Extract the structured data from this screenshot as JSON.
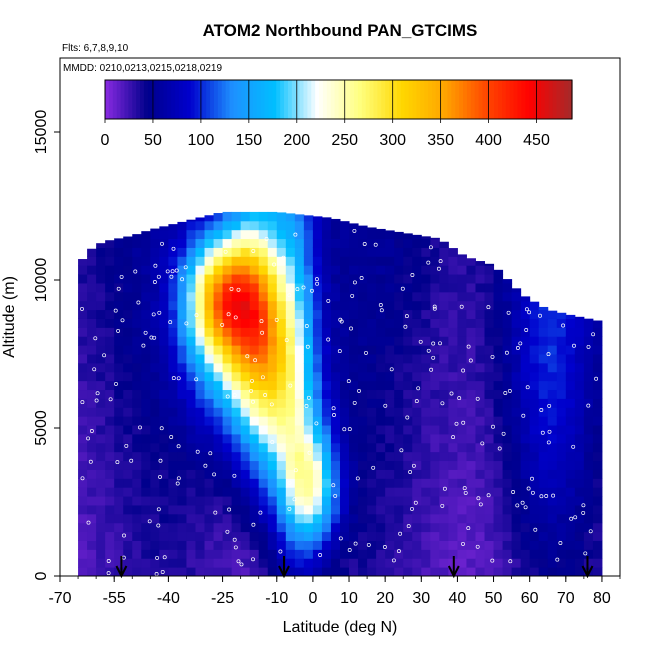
{
  "chart_data": {
    "type": "heatmap",
    "title": "ATOM2 Northbound PAN_GTCIMS",
    "flights_label": "Flts: 6,7,8,9,10",
    "dates_label": "MMDD: 0210,0213,0215,0218,0219",
    "xlabel": "Latitude (deg N)",
    "ylabel": "Altitude (m)",
    "xlim": [
      -70,
      85
    ],
    "ylim": [
      0,
      17500
    ],
    "x_ticks": [
      -70,
      -55,
      -40,
      -25,
      -10,
      0,
      10,
      20,
      30,
      40,
      50,
      60,
      70,
      80
    ],
    "y_ticks": [
      0,
      5000,
      10000,
      15000
    ],
    "colorbar": {
      "ticks": [
        0,
        50,
        100,
        150,
        200,
        250,
        300,
        350,
        400,
        450
      ],
      "range": [
        0,
        487
      ],
      "colors": [
        "#8a2be2",
        "#00008b",
        "#0000cd",
        "#1e90ff",
        "#00bfff",
        "#ffffff",
        "#ffff80",
        "#ffd700",
        "#ffa500",
        "#ff4500",
        "#ff0000",
        "#a52a2a"
      ]
    },
    "arrows_lat": [
      -53,
      -8,
      39,
      76
    ],
    "profile_lat_range": [
      -65,
      80
    ],
    "top_altitude_by_lat": [
      [
        -65,
        10500
      ],
      [
        -62,
        11000
      ],
      [
        -58,
        11300
      ],
      [
        -50,
        11500
      ],
      [
        -45,
        11700
      ],
      [
        -35,
        12000
      ],
      [
        -25,
        12300
      ],
      [
        -10,
        12300
      ],
      [
        5,
        12100
      ],
      [
        15,
        11800
      ],
      [
        25,
        11600
      ],
      [
        35,
        11400
      ],
      [
        42,
        10800
      ],
      [
        50,
        10500
      ],
      [
        58,
        9500
      ],
      [
        65,
        9000
      ],
      [
        72,
        8800
      ],
      [
        80,
        8600
      ]
    ],
    "plume_pan_pptv": [
      [
        -25,
        9500,
        2000,
        2500,
        220
      ],
      [
        -20,
        8000,
        3000,
        4000,
        170
      ],
      [
        -15,
        9200,
        4500,
        1800,
        150
      ],
      [
        0,
        3000,
        2000,
        1600,
        160
      ],
      [
        -8,
        5500,
        3500,
        2500,
        110
      ],
      [
        65,
        7500,
        6000,
        3000,
        55
      ],
      [
        -5,
        10800,
        12000,
        1200,
        70
      ]
    ],
    "background_pan_pptv": 25
  }
}
